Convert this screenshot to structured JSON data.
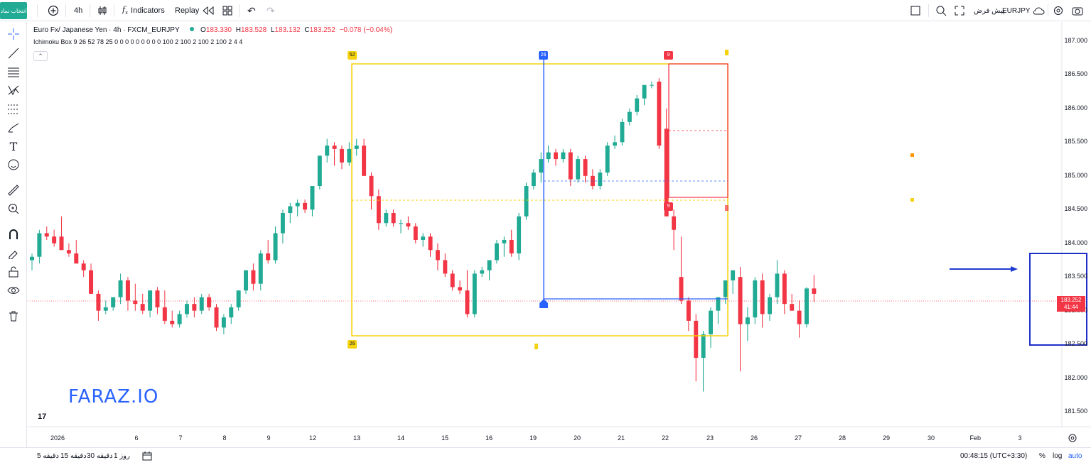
{
  "topbar": {
    "symbol_button": "انتخاب نماد",
    "timeframe": "4h",
    "indicators_label": "Indicators",
    "replay_label": "Replay",
    "symbol_name": "EURJPY",
    "symbol_mode": "پیش فرض"
  },
  "legend": {
    "title": "Euro Fx/ Japanese Yen · 4h · FXCM_EURJPY",
    "open_label": "O",
    "open": "183.330",
    "high_label": "H",
    "high": "183.528",
    "low_label": "L",
    "low": "183.132",
    "close_label": "C",
    "close": "183.252",
    "change": "−0.078 (−0.04%)",
    "indicator": "Ichimoku Box 9 26 52 78 25 0 0 0 0 0 0 0 0 0 100 2 100 2 100 2 100 2 4 4"
  },
  "watermark": "FARAZ.IO",
  "tv_logo": "17",
  "box_labels": {
    "left_top": "52",
    "left_bottom": "26",
    "blue_top": "26",
    "red_top": "9",
    "red_bottom": "9"
  },
  "last_price": {
    "price": "183.252",
    "countdown": "41:44"
  },
  "price_axis": [
    "187.000",
    "186.500",
    "186.000",
    "185.500",
    "185.000",
    "184.500",
    "184.000",
    "183.500",
    "183.000",
    "182.500",
    "182.000",
    "181.500"
  ],
  "time_axis": [
    "2026",
    "6",
    "7",
    "8",
    "9",
    "12",
    "13",
    "14",
    "15",
    "16",
    "19",
    "20",
    "21",
    "22",
    "23",
    "26",
    "27",
    "28",
    "29",
    "30",
    "Feb",
    "3"
  ],
  "bottombar": {
    "ranges": [
      "5 دقیقه",
      "15 دقیقه",
      "30 دقیقه",
      "1 روز"
    ],
    "clock": "00:48:15 (UTC+3:30)",
    "percent": "%",
    "log": "log",
    "auto": "auto"
  },
  "colors": {
    "up": "#22ab94",
    "down": "#f23645",
    "yellow_box": "#f5d20f",
    "blue_line": "#2962ff",
    "red_box": "#f23645"
  },
  "chart_data": {
    "type": "candlestick",
    "title": "Euro Fx/ Japanese Yen · 4h · FXCM_EURJPY",
    "ylim": [
      181.3,
      187.2
    ],
    "candles": [
      [
        183.75,
        183.85,
        183.6,
        183.8
      ],
      [
        183.8,
        184.2,
        183.7,
        184.15
      ],
      [
        184.15,
        184.25,
        184.05,
        184.1
      ],
      [
        184.1,
        184.2,
        183.95,
        184.0
      ],
      [
        184.1,
        184.4,
        183.9,
        183.9
      ],
      [
        183.9,
        184.0,
        183.8,
        183.85
      ],
      [
        183.85,
        184.05,
        183.7,
        183.7
      ],
      [
        183.7,
        183.75,
        183.5,
        183.6
      ],
      [
        183.6,
        183.7,
        183.3,
        183.25
      ],
      [
        183.25,
        183.3,
        182.85,
        183.0
      ],
      [
        183.0,
        183.15,
        182.95,
        183.05
      ],
      [
        183.05,
        183.2,
        183.0,
        183.2
      ],
      [
        183.2,
        183.55,
        183.1,
        183.45
      ],
      [
        183.45,
        183.5,
        183.0,
        183.15
      ],
      [
        183.15,
        183.4,
        183.0,
        183.1
      ],
      [
        183.1,
        183.25,
        182.95,
        183.0
      ],
      [
        183.0,
        183.3,
        182.9,
        183.3
      ],
      [
        183.3,
        183.35,
        182.95,
        183.05
      ],
      [
        183.05,
        183.3,
        182.8,
        182.85
      ],
      [
        182.85,
        183.0,
        182.75,
        182.8
      ],
      [
        182.8,
        183.0,
        182.75,
        182.95
      ],
      [
        182.95,
        183.15,
        182.9,
        183.1
      ],
      [
        183.1,
        183.2,
        182.9,
        183.0
      ],
      [
        183.0,
        183.25,
        182.95,
        183.2
      ],
      [
        183.2,
        183.25,
        183.0,
        183.05
      ],
      [
        183.05,
        183.1,
        182.7,
        182.75
      ],
      [
        182.75,
        182.95,
        182.65,
        182.9
      ],
      [
        182.9,
        183.1,
        182.8,
        183.05
      ],
      [
        183.05,
        183.3,
        183.0,
        183.3
      ],
      [
        183.3,
        183.6,
        183.25,
        183.6
      ],
      [
        183.6,
        183.7,
        183.3,
        183.4
      ],
      [
        183.4,
        183.9,
        183.3,
        183.85
      ],
      [
        183.85,
        184.05,
        183.7,
        183.75
      ],
      [
        183.75,
        184.25,
        183.7,
        184.15
      ],
      [
        184.15,
        184.5,
        184.0,
        184.45
      ],
      [
        184.45,
        184.6,
        184.3,
        184.55
      ],
      [
        184.55,
        184.65,
        184.4,
        184.6
      ],
      [
        184.6,
        184.65,
        184.45,
        184.5
      ],
      [
        184.5,
        184.85,
        184.4,
        184.85
      ],
      [
        184.85,
        185.3,
        184.8,
        185.3
      ],
      [
        185.3,
        185.55,
        185.2,
        185.45
      ],
      [
        185.45,
        185.5,
        185.15,
        185.4
      ],
      [
        185.4,
        185.45,
        185.1,
        185.2
      ],
      [
        185.2,
        185.5,
        185.15,
        185.4
      ],
      [
        185.4,
        185.55,
        185.3,
        185.45
      ],
      [
        185.45,
        185.55,
        185.0,
        185.0
      ],
      [
        185.0,
        185.05,
        184.5,
        184.7
      ],
      [
        184.7,
        184.8,
        184.2,
        184.3
      ],
      [
        184.3,
        184.5,
        184.25,
        184.45
      ],
      [
        184.45,
        184.5,
        184.25,
        184.3
      ],
      [
        184.3,
        184.35,
        184.15,
        184.3
      ],
      [
        184.3,
        184.4,
        184.2,
        184.25
      ],
      [
        184.25,
        184.3,
        184.0,
        184.05
      ],
      [
        184.05,
        184.15,
        183.95,
        184.1
      ],
      [
        184.1,
        184.15,
        183.8,
        183.9
      ],
      [
        183.9,
        184.0,
        183.6,
        183.75
      ],
      [
        183.75,
        183.85,
        183.5,
        183.55
      ],
      [
        183.55,
        183.6,
        183.3,
        183.35
      ],
      [
        183.35,
        183.45,
        183.25,
        183.3
      ],
      [
        183.3,
        183.6,
        182.9,
        182.95
      ],
      [
        182.95,
        183.6,
        182.9,
        183.55
      ],
      [
        183.55,
        183.65,
        183.5,
        183.6
      ],
      [
        183.6,
        183.75,
        183.45,
        183.75
      ],
      [
        183.75,
        184.05,
        183.7,
        184.0
      ],
      [
        184.0,
        184.1,
        183.8,
        184.05
      ],
      [
        184.05,
        184.2,
        183.8,
        183.85
      ],
      [
        183.85,
        184.45,
        183.75,
        184.4
      ],
      [
        184.4,
        184.9,
        184.35,
        184.85
      ],
      [
        184.85,
        185.1,
        184.8,
        185.05
      ],
      [
        185.05,
        185.35,
        184.9,
        185.25
      ],
      [
        185.25,
        185.45,
        185.2,
        185.35
      ],
      [
        185.35,
        185.4,
        185.15,
        185.25
      ],
      [
        185.25,
        185.4,
        185.2,
        185.35
      ],
      [
        185.35,
        185.4,
        184.85,
        184.95
      ],
      [
        184.95,
        185.3,
        184.9,
        185.25
      ],
      [
        185.25,
        185.3,
        184.9,
        185.0
      ],
      [
        185.0,
        185.1,
        184.8,
        184.85
      ],
      [
        184.85,
        185.1,
        184.8,
        185.05
      ],
      [
        185.05,
        185.5,
        185.0,
        185.45
      ],
      [
        185.45,
        185.6,
        185.4,
        185.5
      ],
      [
        185.5,
        185.85,
        185.45,
        185.8
      ],
      [
        185.8,
        186.0,
        185.75,
        185.95
      ],
      [
        185.95,
        186.2,
        185.9,
        186.15
      ],
      [
        186.15,
        186.35,
        186.05,
        186.35
      ],
      [
        186.35,
        186.4,
        186.3,
        186.35
      ],
      [
        186.4,
        186.45,
        185.4,
        185.45
      ],
      [
        185.7,
        186.0,
        184.4,
        184.4
      ],
      [
        184.4,
        184.5,
        183.9,
        184.2
      ],
      [
        183.5,
        184.1,
        183.1,
        183.15
      ],
      [
        183.15,
        183.2,
        182.7,
        182.85
      ],
      [
        182.85,
        182.95,
        181.95,
        182.3
      ],
      [
        182.3,
        182.7,
        181.8,
        182.65
      ],
      [
        182.65,
        183.05,
        182.45,
        183.0
      ],
      [
        183.0,
        183.15,
        182.8,
        183.2
      ],
      [
        183.2,
        183.4,
        183.1,
        183.45
      ],
      [
        183.45,
        183.6,
        183.25,
        183.6
      ],
      [
        183.5,
        183.65,
        182.1,
        182.8
      ],
      [
        182.8,
        183.05,
        182.55,
        182.9
      ],
      [
        182.9,
        183.5,
        182.8,
        183.45
      ],
      [
        183.45,
        183.55,
        182.75,
        182.95
      ],
      [
        182.95,
        183.25,
        182.85,
        183.2
      ],
      [
        183.2,
        183.75,
        183.1,
        183.55
      ],
      [
        183.55,
        183.6,
        182.95,
        183.1
      ],
      [
        183.1,
        183.25,
        183.0,
        183.0
      ],
      [
        183.0,
        183.15,
        182.6,
        182.8
      ],
      [
        182.8,
        183.35,
        182.75,
        183.33
      ],
      [
        183.33,
        183.53,
        183.13,
        183.25
      ]
    ]
  }
}
